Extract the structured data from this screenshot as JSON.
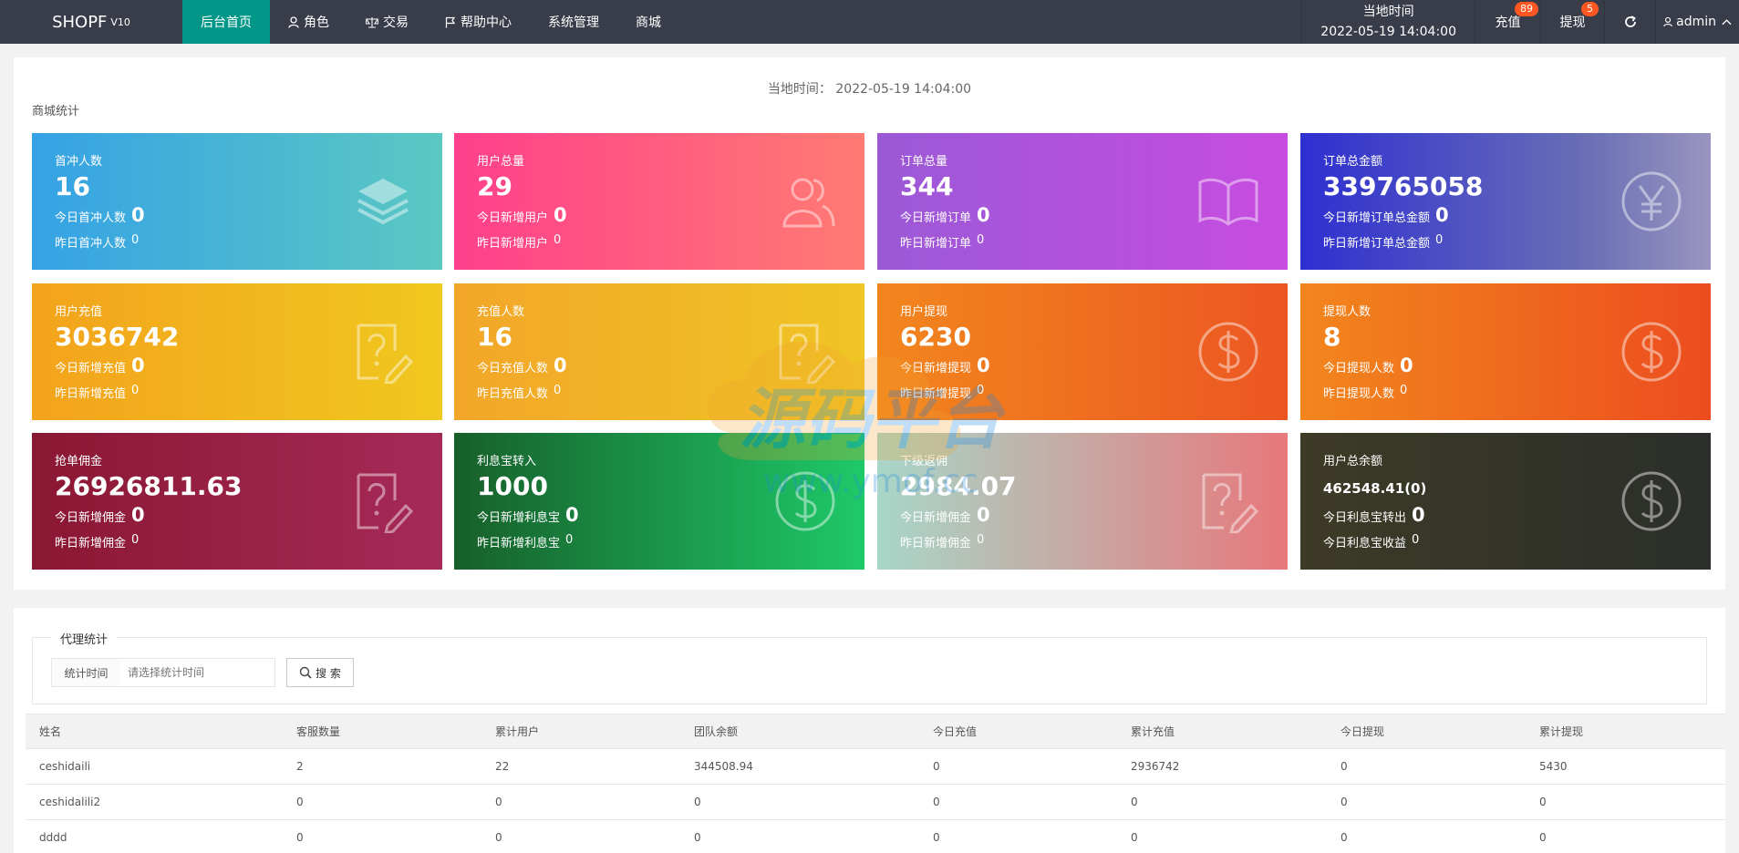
{
  "header": {
    "logo": "SHOPF",
    "logo_version": "V10",
    "nav": [
      {
        "label": "后台首页",
        "icon": ""
      },
      {
        "label": "角色",
        "icon": "user-icon"
      },
      {
        "label": "交易",
        "icon": "scale-icon"
      },
      {
        "label": "帮助中心",
        "icon": "flag-icon"
      },
      {
        "label": "系统管理",
        "icon": ""
      },
      {
        "label": "商城",
        "icon": ""
      }
    ],
    "time_label": "当地时间",
    "time_value": "2022-05-19 14:04:00",
    "recharge_label": "充值",
    "recharge_badge": "89",
    "withdraw_label": "提现",
    "withdraw_badge": "5",
    "refresh_icon": "refresh-icon",
    "user_label": "admin"
  },
  "stats": {
    "center_time_label": "当地时间：",
    "center_time_value": "2022-05-19 14:04:00",
    "section_title": "商城统计",
    "cards": [
      {
        "title": "首冲人数",
        "value": "16",
        "today_label": "今日首冲人数",
        "today_value": "0",
        "yesterday_label": "昨日首冲人数",
        "yesterday_value": "0",
        "icon": "layers-icon"
      },
      {
        "title": "用户总量",
        "value": "29",
        "today_label": "今日新增用户",
        "today_value": "0",
        "yesterday_label": "昨日新增用户",
        "yesterday_value": "0",
        "icon": "users-icon"
      },
      {
        "title": "订单总量",
        "value": "344",
        "today_label": "今日新增订单",
        "today_value": "0",
        "yesterday_label": "昨日新增订单",
        "yesterday_value": "0",
        "icon": "book-icon"
      },
      {
        "title": "订单总金额",
        "value": "339765058",
        "today_label": "今日新增订单总金额",
        "today_value": "0",
        "yesterday_label": "昨日新增订单总金额",
        "yesterday_value": "0",
        "icon": "yen-icon"
      },
      {
        "title": "用户充值",
        "value": "3036742",
        "today_label": "今日新增充值",
        "today_value": "0",
        "yesterday_label": "昨日新增充值",
        "yesterday_value": "0",
        "icon": "question-edit-icon"
      },
      {
        "title": "充值人数",
        "value": "16",
        "today_label": "今日充值人数",
        "today_value": "0",
        "yesterday_label": "昨日充值人数",
        "yesterday_value": "0",
        "icon": "question-edit-icon"
      },
      {
        "title": "用户提现",
        "value": "6230",
        "today_label": "今日新增提现",
        "today_value": "0",
        "yesterday_label": "昨日新增提现",
        "yesterday_value": "0",
        "icon": "dollar-icon"
      },
      {
        "title": "提现人数",
        "value": "8",
        "today_label": "今日提现人数",
        "today_value": "0",
        "yesterday_label": "昨日提现人数",
        "yesterday_value": "0",
        "icon": "dollar-icon"
      },
      {
        "title": "抢单佣金",
        "value": "26926811.63",
        "today_label": "今日新增佣金",
        "today_value": "0",
        "yesterday_label": "昨日新增佣金",
        "yesterday_value": "0",
        "icon": "question-edit-icon"
      },
      {
        "title": "利息宝转入",
        "value": "1000",
        "today_label": "今日新增利息宝",
        "today_value": "0",
        "yesterday_label": "昨日新增利息宝",
        "yesterday_value": "0",
        "icon": "dollar-icon"
      },
      {
        "title": "下级返佣",
        "value": "2984.07",
        "today_label": "今日新增佣金",
        "today_value": "0",
        "yesterday_label": "昨日新增佣金",
        "yesterday_value": "0",
        "icon": "question-edit-icon"
      },
      {
        "title": "用户总余额",
        "value": "462548.41(0)",
        "today_label": "今日利息宝转出",
        "today_value": "0",
        "yesterday_label": "今日利息宝收益",
        "yesterday_value": "0",
        "icon": "dollar-icon"
      }
    ]
  },
  "agent": {
    "legend": "代理统计",
    "search_label": "统计时间",
    "search_placeholder": "请选择统计时间",
    "search_button": "搜 索",
    "columns": [
      "姓名",
      "客服数量",
      "累计用户",
      "团队余额",
      "今日充值",
      "累计充值",
      "今日提现",
      "累计提现"
    ],
    "rows": [
      [
        "ceshidaili",
        "2",
        "22",
        "344508.94",
        "0",
        "2936742",
        "0",
        "5430"
      ],
      [
        "ceshidalili2",
        "0",
        "0",
        "0",
        "0",
        "0",
        "0",
        "0"
      ],
      [
        "dddd",
        "0",
        "0",
        "0",
        "0",
        "0",
        "0",
        "0"
      ]
    ]
  },
  "watermark": {
    "text": "源码平台",
    "url": "www.ymof.cc"
  },
  "colors": {
    "header_bg": "#393d49",
    "active_nav": "#009688",
    "badge": "#ff5722"
  }
}
